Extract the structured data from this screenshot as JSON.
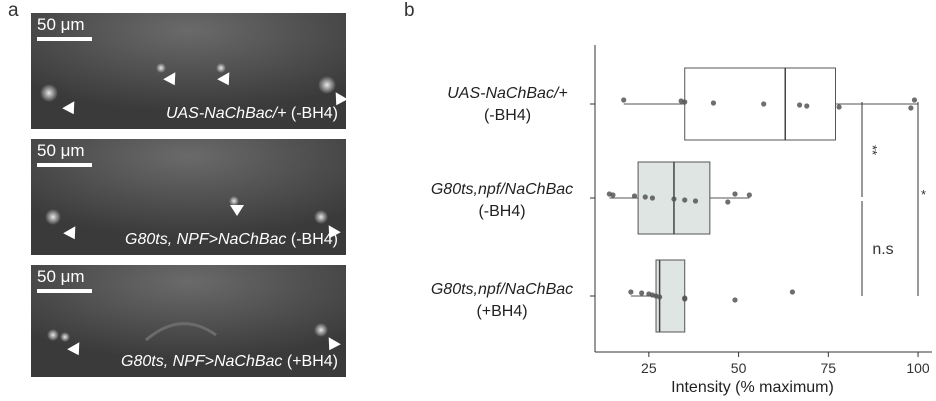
{
  "panel_a": {
    "letter": "a",
    "images": [
      {
        "scale_label": "50 μm",
        "label_italic": "UAS-NaChBac/+",
        "label_rest": " (-BH4)"
      },
      {
        "scale_label": "50 μm",
        "label_italic": "G80ts, NPF>NaChBac",
        "label_rest": " (-BH4)"
      },
      {
        "scale_label": "50 μm",
        "label_italic": "G80ts, NPF>NaChBac",
        "label_rest": " (+BH4)"
      }
    ]
  },
  "panel_b": {
    "letter": "b",
    "groups": [
      {
        "line1": "UAS-NaChBac/+",
        "line2": "(-BH4)"
      },
      {
        "line1": "G80ts,npf/NaChBac",
        "line2": "(-BH4)"
      },
      {
        "line1": "G80ts,npf/NaChBac",
        "line2": "(+BH4)"
      }
    ],
    "significance": [
      {
        "label": "**"
      },
      {
        "label": "n.s"
      },
      {
        "label": "*"
      }
    ]
  },
  "chart_data": {
    "type": "box",
    "xlabel": "Intensity (% maximum)",
    "xlim": [
      10,
      105
    ],
    "xticks": [
      25,
      50,
      75,
      100
    ],
    "categories": [
      "UAS-NaChBac/+ (-BH4)",
      "G80ts,npf/NaChBac (-BH4)",
      "G80ts,npf/NaChBac (+BH4)"
    ],
    "boxes": [
      {
        "whisker_low": 18,
        "q1": 35,
        "median": 63,
        "q3": 77,
        "whisker_high": 100,
        "fill": "#ffffff",
        "points": [
          18,
          34,
          35,
          43,
          57,
          67,
          69,
          78,
          98,
          99
        ]
      },
      {
        "whisker_low": 14,
        "q1": 22,
        "median": 32,
        "q3": 42,
        "whisker_high": 53,
        "fill": "#dfe5e3",
        "points": [
          14,
          15,
          21,
          24,
          26,
          32,
          35,
          38,
          47,
          49,
          53
        ]
      },
      {
        "whisker_low": 20,
        "q1": 27,
        "median": 28,
        "q3": 35,
        "whisker_high": 35,
        "fill": "#dfe5e3",
        "points": [
          20,
          23,
          25,
          26,
          27,
          28,
          35,
          35,
          49,
          65
        ]
      }
    ]
  }
}
